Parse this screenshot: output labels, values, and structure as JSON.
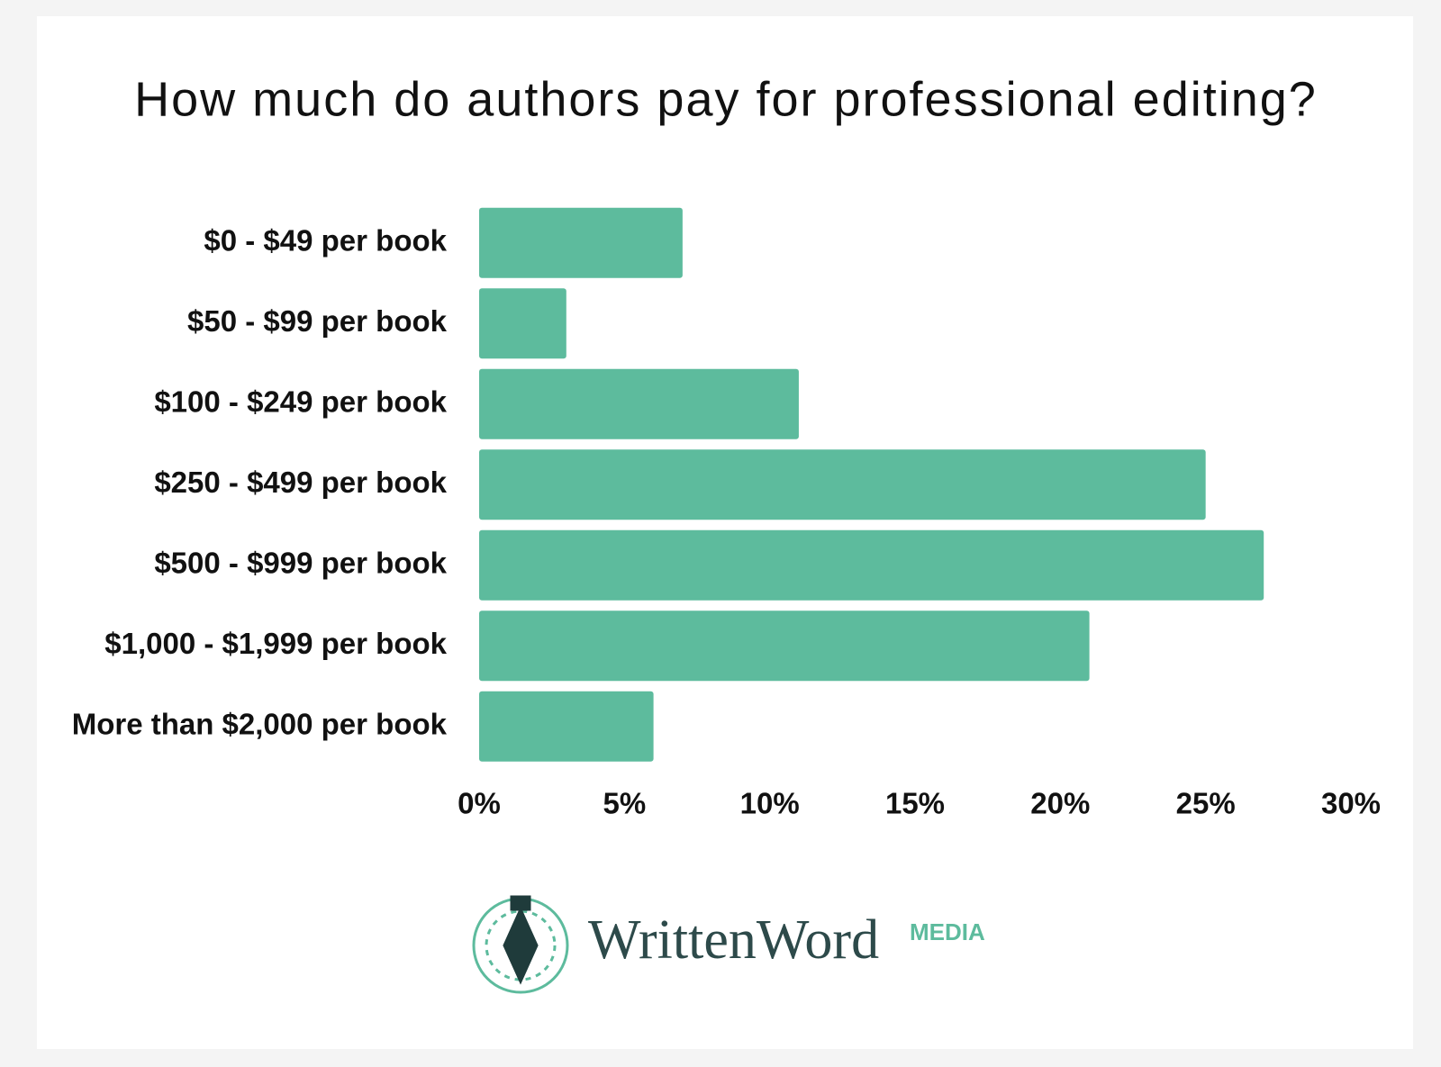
{
  "chart_data": {
    "type": "hbar",
    "title": "How much do authors pay for professional editing?",
    "categories": [
      "$0 - $49 per book",
      "$50 - $99 per book",
      "$100 - $249 per book",
      "$250 - $499 per book",
      "$500 - $999 per book",
      "$1,000 - $1,999 per book",
      "More than $2,000 per book"
    ],
    "values": [
      7,
      3,
      11,
      25,
      27,
      21,
      6
    ],
    "color": "#5dbb9d",
    "xlim": [
      0,
      30
    ],
    "xticks": [
      {
        "value": 0,
        "label": "0%"
      },
      {
        "value": 5,
        "label": "5%"
      },
      {
        "value": 10,
        "label": "10%"
      },
      {
        "value": 15,
        "label": "15%"
      },
      {
        "value": 20,
        "label": "20%"
      },
      {
        "value": 25,
        "label": "25%"
      },
      {
        "value": 30,
        "label": "30%"
      }
    ],
    "grid": false
  },
  "logo": {
    "name": "WrittenWord",
    "tag": "MEDIA"
  }
}
